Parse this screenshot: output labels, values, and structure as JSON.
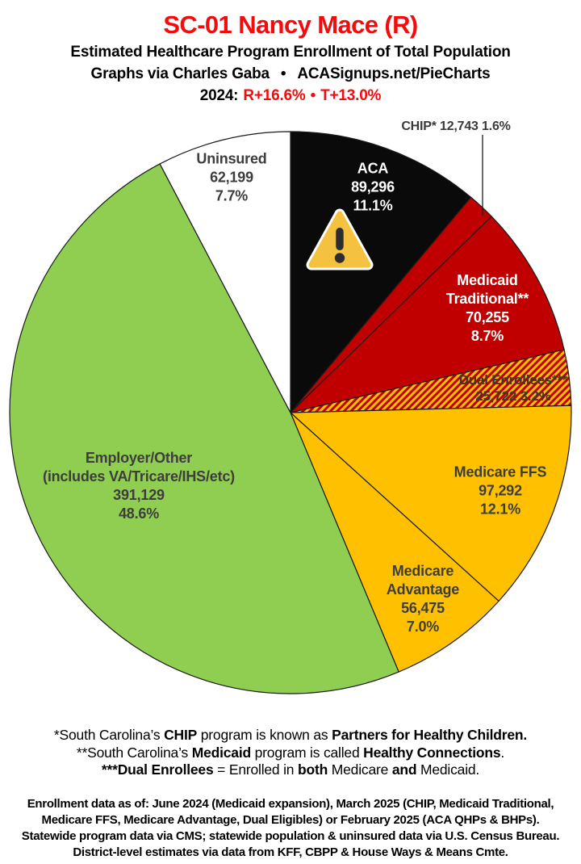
{
  "header": {
    "title": "SC-01 Nancy Mace (R)",
    "subtitle": "Estimated Healthcare Program Enrollment of Total Population",
    "credit_left": "Graphs via Charles Gaba",
    "credit_sep": "•",
    "credit_right": "ACASignups.net/PieCharts",
    "lean_label": "2024:",
    "lean_r": "R+16.6%",
    "lean_sep": "•",
    "lean_t": "T+13.0%"
  },
  "chart_data": {
    "type": "pie",
    "title": "Estimated Healthcare Program Enrollment of Total Population",
    "start_angle_deg": 0,
    "direction": "clockwise",
    "total_pct": 100.0,
    "segments": [
      {
        "id": "aca",
        "name": "ACA",
        "value": 89296,
        "pct": 11.1,
        "color": "#0A0A0A",
        "text_color": "#FFFFFF",
        "label_lines": [
          "ACA",
          "89,296",
          "11.1%"
        ]
      },
      {
        "id": "chip",
        "name": "CHIP*",
        "value": 12743,
        "pct": 1.6,
        "color": "#C00000",
        "callout": "CHIP* 12,743 1.6%"
      },
      {
        "id": "medicaid-traditional",
        "name": "Medicaid Traditional**",
        "value": 70255,
        "pct": 8.7,
        "color": "#C00000",
        "text_color": "#FFFFFF",
        "label_lines": [
          "Medicaid",
          "Traditional**",
          "70,255",
          "8.7%"
        ]
      },
      {
        "id": "dual-enrollees",
        "name": "Dual Enrollees***",
        "value": 25722,
        "pct": 3.2,
        "color": "#FFC000",
        "pattern": "hatch",
        "text_color": "#383838",
        "label_lines": [
          "Dual Enrollees***",
          "25,722 3.2%"
        ]
      },
      {
        "id": "medicare-ffs",
        "name": "Medicare FFS",
        "value": 97292,
        "pct": 12.1,
        "color": "#FFC000",
        "text_color": "#3D3D3D",
        "label_lines": [
          "Medicare FFS",
          "97,292",
          "12.1%"
        ]
      },
      {
        "id": "medicare-advantage",
        "name": "Medicare Advantage",
        "value": 56475,
        "pct": 7.0,
        "color": "#FFC000",
        "text_color": "#3D3D3D",
        "label_lines": [
          "Medicare",
          "Advantage",
          "56,475",
          "7.0%"
        ]
      },
      {
        "id": "employer-other",
        "name": "Employer/Other (includes VA/Tricare/IHS/etc)",
        "value": 391129,
        "pct": 48.6,
        "color": "#90CE51",
        "text_color": "#3D3D3D",
        "label_lines": [
          "Employer/Other",
          "(includes VA/Tricare/IHS/etc)",
          "391,129",
          "48.6%"
        ]
      },
      {
        "id": "uninsured",
        "name": "Uninsured",
        "value": 62199,
        "pct": 7.7,
        "color": "#FFFFFF",
        "text_color": "#3D3D3D",
        "label_lines": [
          "Uninsured",
          "62,199",
          "7.7%"
        ]
      }
    ],
    "hatch_colors": {
      "base": "#FFC000",
      "stripe": "#C00000"
    },
    "warning_icon_colors": {
      "triangle": "#F4C23E",
      "border": "#FFFFFF",
      "mark": "#2D2D2D"
    }
  },
  "footnotes": [
    {
      "segments": [
        {
          "t": "*South Carolina’s ",
          "b": false
        },
        {
          "t": "CHIP",
          "b": true
        },
        {
          "t": " program is known as ",
          "b": false
        },
        {
          "t": "Partners for Healthy Children.",
          "b": true
        }
      ]
    },
    {
      "segments": [
        {
          "t": "**South Carolina’s ",
          "b": false
        },
        {
          "t": "Medicaid",
          "b": true
        },
        {
          "t": " program is called ",
          "b": false
        },
        {
          "t": "Healthy Connections",
          "b": true
        },
        {
          "t": ".",
          "b": false
        }
      ]
    },
    {
      "segments": [
        {
          "t": "***Dual Enrollees",
          "b": true
        },
        {
          "t": " = Enrolled in ",
          "b": false
        },
        {
          "t": "both",
          "b": true
        },
        {
          "t": " Medicare ",
          "b": false
        },
        {
          "t": "and",
          "b": true
        },
        {
          "t": " Medicaid.",
          "b": false
        }
      ]
    }
  ],
  "bottom_notes": [
    "Enrollment data as of: June 2024 (Medicaid expansion), March 2025 (CHIP, Medicaid Traditional,",
    "Medicare FFS, Medicare Advantage, Dual Eligibles) or February 2025 (ACA QHPs & BHPs).",
    "Statewide program data via CMS; statewide population & uninsured data via U.S. Census Bureau.",
    "District-level estimates via data from KFF, CBPP & House Ways & Means Cmte."
  ]
}
